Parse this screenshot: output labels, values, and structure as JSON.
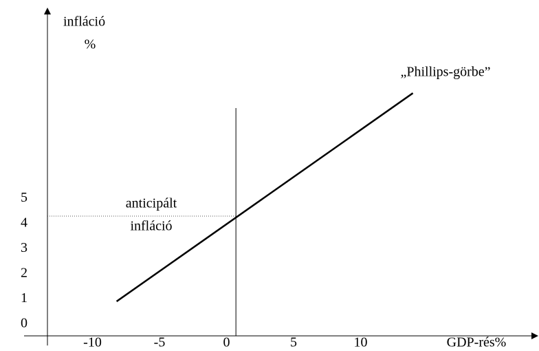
{
  "chart_data": {
    "type": "line",
    "y_label": [
      "infláció",
      "%"
    ],
    "x_label": "GDP-rés%",
    "annotation": "„Phillips-görbe”",
    "reference_label": [
      "anticipált",
      "infláció"
    ],
    "x": [
      -8.2,
      13.9
    ],
    "series": [
      {
        "name": "„Phillips-görbe”",
        "color": "#000000",
        "values": [
          0.9,
          9.2
        ]
      }
    ],
    "vline": 0.7,
    "hline": 4.3,
    "xlim": [
      -15,
      23
    ],
    "ylim": [
      -0.5,
      12.5
    ],
    "xticks": [
      -10,
      -5,
      0,
      5,
      10
    ],
    "yticks": [
      0,
      1,
      2,
      3,
      4,
      5
    ],
    "grid": false
  }
}
